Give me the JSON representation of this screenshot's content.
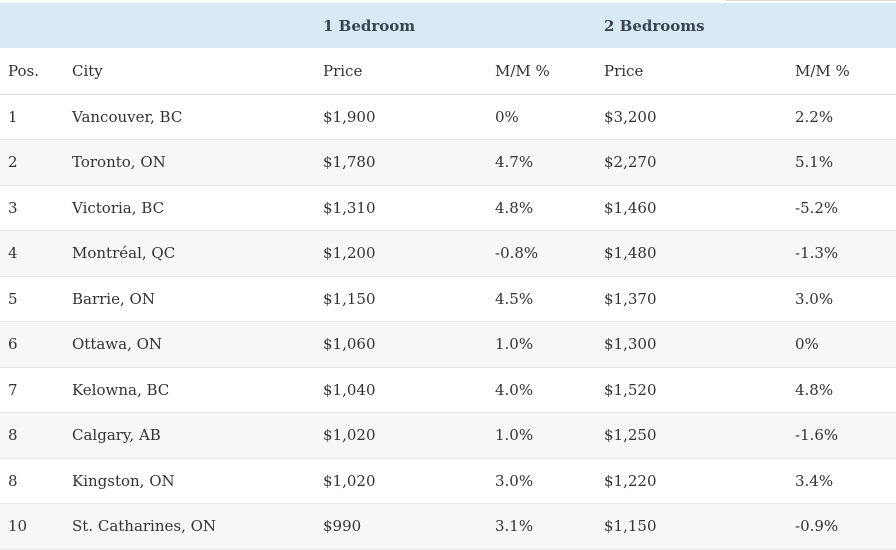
{
  "table": {
    "group_headers": {
      "one_bedroom": "1 Bedroom",
      "two_bedrooms": "2 Bedrooms"
    },
    "column_headers": {
      "pos": "Pos.",
      "city": "City",
      "price_1br": "Price",
      "mm_1br": "M/M %",
      "price_2br": "Price",
      "mm_2br": "M/M %"
    },
    "rows": [
      {
        "pos": "1",
        "city": "Vancouver, BC",
        "price_1br": "$1,900",
        "mm_1br": "0%",
        "price_2br": "$3,200",
        "mm_2br": "2.2%"
      },
      {
        "pos": "2",
        "city": "Toronto, ON",
        "price_1br": "$1,780",
        "mm_1br": "4.7%",
        "price_2br": "$2,270",
        "mm_2br": "5.1%"
      },
      {
        "pos": "3",
        "city": "Victoria, BC",
        "price_1br": "$1,310",
        "mm_1br": "4.8%",
        "price_2br": "$1,460",
        "mm_2br": "-5.2%"
      },
      {
        "pos": "4",
        "city": "Montréal, QC",
        "price_1br": "$1,200",
        "mm_1br": "-0.8%",
        "price_2br": "$1,480",
        "mm_2br": "-1.3%"
      },
      {
        "pos": "5",
        "city": "Barrie, ON",
        "price_1br": "$1,150",
        "mm_1br": "4.5%",
        "price_2br": "$1,370",
        "mm_2br": "3.0%"
      },
      {
        "pos": "6",
        "city": "Ottawa, ON",
        "price_1br": "$1,060",
        "mm_1br": "1.0%",
        "price_2br": "$1,300",
        "mm_2br": "0%"
      },
      {
        "pos": "7",
        "city": "Kelowna, BC",
        "price_1br": "$1,040",
        "mm_1br": "4.0%",
        "price_2br": "$1,520",
        "mm_2br": "4.8%"
      },
      {
        "pos": "8",
        "city": "Calgary, AB",
        "price_1br": "$1,020",
        "mm_1br": "1.0%",
        "price_2br": "$1,250",
        "mm_2br": "-1.6%"
      },
      {
        "pos": "8",
        "city": "Kingston, ON",
        "price_1br": "$1,020",
        "mm_1br": "3.0%",
        "price_2br": "$1,220",
        "mm_2br": "3.4%"
      },
      {
        "pos": "10",
        "city": "St. Catharines, ON",
        "price_1br": "$990",
        "mm_1br": "3.1%",
        "price_2br": "$1,150",
        "mm_2br": "-0.9%"
      }
    ]
  }
}
